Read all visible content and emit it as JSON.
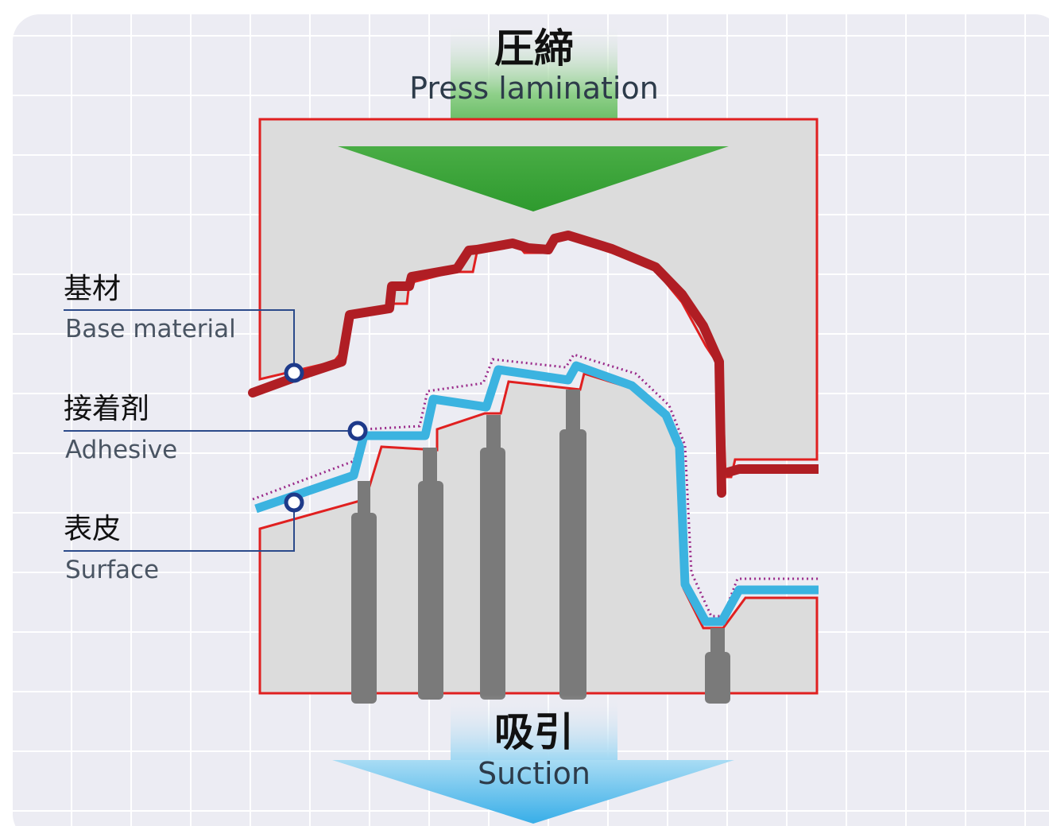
{
  "press": {
    "label_jp": "圧締",
    "label_en": "Press lamination"
  },
  "suction": {
    "label_jp": "吸引",
    "label_en": "Suction"
  },
  "labels": {
    "base_material": {
      "jp": "基材",
      "en": "Base material"
    },
    "adhesive": {
      "jp": "接着剤",
      "en": "Adhesive"
    },
    "surface": {
      "jp": "表皮",
      "en": "Surface"
    }
  },
  "colors": {
    "background": "#ececf3",
    "grid": "#ffffff",
    "mold_fill": "#dcdcdc",
    "mold_outline": "#e02020",
    "base_material": "#b01e24",
    "surface": "#3bb3e0",
    "adhesive_dots": "#9a2a8a",
    "press_arrow": "#3ba13b",
    "suction_arrow": "#4ab8ec",
    "leader_line": "#2b4a8a",
    "pins": "#7a7a7a"
  }
}
